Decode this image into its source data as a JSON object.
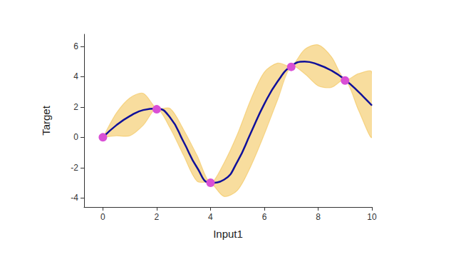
{
  "chart_data": {
    "type": "line",
    "x_label": "Input1",
    "y_label": "Target",
    "xlim": [
      -0.7,
      10
    ],
    "xticks": [
      0,
      2,
      4,
      6,
      8,
      10
    ],
    "ylim": [
      -4.6,
      6.8
    ],
    "yticks": [
      -4,
      -2,
      0,
      2,
      4,
      6
    ],
    "grid": false,
    "x": [
      0,
      0.5,
      1,
      1.5,
      2,
      2.5,
      3,
      3.5,
      4,
      4.5,
      5,
      5.5,
      6,
      6.5,
      7,
      7.5,
      8,
      8.5,
      9,
      9.5,
      10
    ],
    "series": [
      {
        "type": "band",
        "color": "#f2c14e",
        "upper": [
          0,
          1.6,
          2.6,
          2.9,
          1.9,
          1.9,
          0.5,
          -1.2,
          -3.0,
          -1.7,
          0.2,
          2.5,
          4.3,
          4.9,
          4.7,
          5.8,
          6.1,
          5.3,
          3.8,
          4.2,
          4.3
        ],
        "lower": [
          0,
          0.1,
          0.1,
          0.8,
          1.9,
          0.6,
          -1.2,
          -2.9,
          -3.0,
          -3.9,
          -3.5,
          -1.9,
          0.2,
          2.5,
          4.7,
          4.2,
          3.4,
          3.3,
          3.8,
          1.8,
          0.0
        ]
      },
      {
        "type": "line",
        "color": "#10109a",
        "values": [
          0,
          0.8,
          1.4,
          1.8,
          1.9,
          1.3,
          -0.3,
          -2.0,
          -3.0,
          -2.8,
          -1.6,
          0.3,
          2.2,
          3.7,
          4.7,
          5.0,
          4.8,
          4.4,
          3.8,
          3.0,
          2.1
        ]
      },
      {
        "type": "scatter",
        "color": "#d94fd6",
        "marker": "circle",
        "x": [
          0,
          2,
          4,
          7,
          9
        ],
        "values": [
          0,
          1.85,
          -3.0,
          4.65,
          3.75
        ]
      }
    ]
  }
}
